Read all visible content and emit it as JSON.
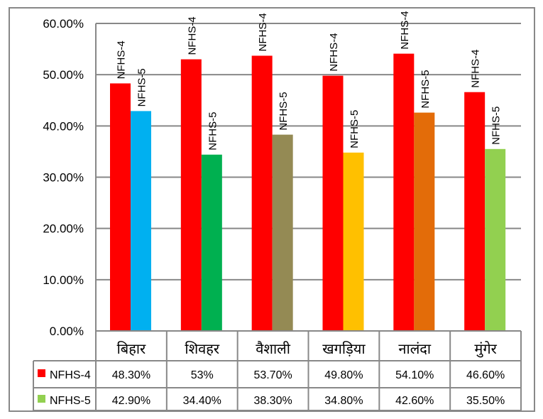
{
  "chart_data": {
    "type": "bar",
    "categories": [
      "बिहार",
      "शिवहर",
      "वैशाली",
      "खगड़िया",
      "नालंदा",
      "मुंगेर"
    ],
    "ylim": [
      0,
      60
    ],
    "yticks": [
      "0.00%",
      "10.00%",
      "20.00%",
      "30.00%",
      "40.00%",
      "50.00%",
      "60.00%"
    ],
    "grid": true,
    "series": [
      {
        "name": "NFHS-4",
        "values": [
          48.3,
          53,
          53.7,
          49.8,
          54.1,
          46.6
        ],
        "table": [
          "48.30%",
          "53%",
          "53.70%",
          "49.80%",
          "54.10%",
          "46.60%"
        ],
        "legend_color": "#FF0000",
        "colors": [
          "#FF0000",
          "#FF0000",
          "#FF0000",
          "#FF0000",
          "#FF0000",
          "#FF0000"
        ]
      },
      {
        "name": "NFHS-5",
        "values": [
          42.9,
          34.4,
          38.3,
          34.8,
          42.6,
          35.5
        ],
        "table": [
          "42.90%",
          "34.40%",
          "38.30%",
          "34.80%",
          "42.60%",
          "35.50%"
        ],
        "legend_color": "#92D050",
        "colors": [
          "#00B0F0",
          "#00B050",
          "#948A54",
          "#FFC000",
          "#E36C09",
          "#92D050"
        ]
      }
    ]
  }
}
